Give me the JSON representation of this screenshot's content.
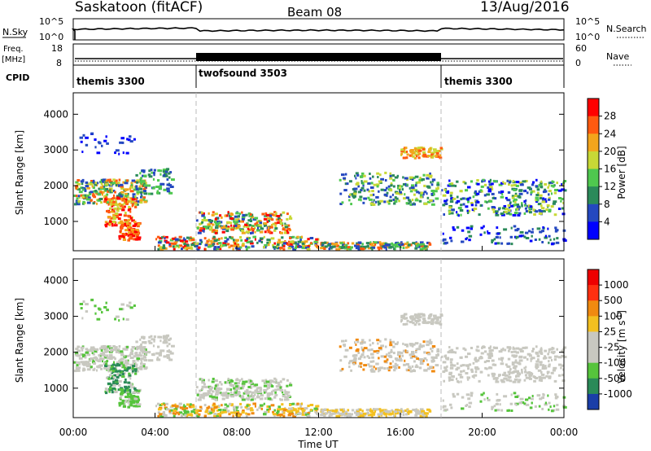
{
  "header": {
    "station": "Saskatoon (fitACF)",
    "beam": "Beam 08",
    "date": "13/Aug/2016"
  },
  "strips": {
    "nsky": {
      "left_label": "N.Sky",
      "right_label": "N.Search",
      "left_ticks": [
        "10^5",
        "10^0"
      ],
      "right_ticks": [
        "10^5",
        "10^0"
      ]
    },
    "freq": {
      "left_label_1": "Freq.",
      "left_label_2": "[MHz]",
      "left_ticks": [
        "18",
        "8"
      ],
      "right_label": "Nave",
      "right_ticks": [
        "60",
        "0"
      ]
    },
    "cpid": {
      "label": "CPID",
      "segments": [
        {
          "name": "themis 3300",
          "start_h": 0
        },
        {
          "name": "twofsound 3503",
          "start_h": 6
        },
        {
          "name": "themis 3300",
          "start_h": 18
        }
      ]
    }
  },
  "chart_data": [
    {
      "type": "heatmap",
      "name": "power",
      "ylabel": "Slant Range [km]",
      "xlabel": "",
      "ylim": [
        180,
        4600
      ],
      "yticks": [
        "4000",
        "3000",
        "2000",
        "1000"
      ],
      "xlim": [
        0,
        24
      ],
      "colorbar": {
        "label": "Power [dB]",
        "ticks": [
          "28",
          "24",
          "20",
          "16",
          "12",
          "8",
          "4"
        ],
        "colors": [
          "#0000ff",
          "#2448c0",
          "#2b8a5a",
          "#4fc84f",
          "#c8d836",
          "#f3a51c",
          "#ff5a10",
          "#ff0000"
        ]
      }
    },
    {
      "type": "heatmap",
      "name": "velocity",
      "ylabel": "Slant Range [km]",
      "xlabel": "Time UT",
      "ylim": [
        180,
        4600
      ],
      "yticks": [
        "4000",
        "3000",
        "2000",
        "1000"
      ],
      "xlim": [
        0,
        24
      ],
      "xticks": [
        "00:00",
        "04:00",
        "08:00",
        "12:00",
        "16:00",
        "20:00",
        "00:00"
      ],
      "colorbar": {
        "label": "Velocity [m s",
        "label_sup": "-1",
        "ticks": [
          "1000",
          "500",
          "100",
          "25",
          "-25",
          "-100",
          "-500",
          "-1000"
        ],
        "colors": [
          "#1a3ea8",
          "#2a8a58",
          "#56c43c",
          "#c8c8c0",
          "#c8c8c0",
          "#f3c020",
          "#f08a10",
          "#ff3010",
          "#ee0000"
        ]
      }
    }
  ]
}
